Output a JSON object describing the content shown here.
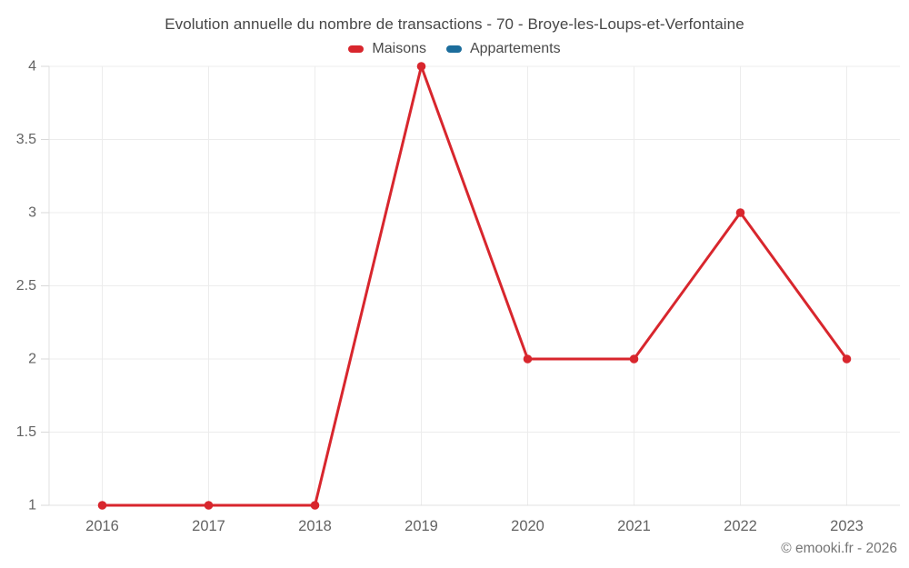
{
  "chart_data": {
    "type": "line",
    "title": "Evolution annuelle du nombre de transactions - 70 - Broye-les-Loups-et-Verfontaine",
    "xlabel": "",
    "ylabel": "",
    "categories": [
      "2016",
      "2017",
      "2018",
      "2019",
      "2020",
      "2021",
      "2022",
      "2023"
    ],
    "series": [
      {
        "name": "Maisons",
        "color": "#d8262d",
        "values": [
          1,
          1,
          1,
          4,
          2,
          2,
          3,
          2
        ]
      },
      {
        "name": "Appartements",
        "color": "#1c6d9c",
        "values": []
      }
    ],
    "ylim": [
      1,
      4
    ],
    "yticks": [
      1,
      1.5,
      2,
      2.5,
      3,
      3.5,
      4
    ],
    "grid": true,
    "legend_position": "top"
  },
  "colors": {
    "grid": "#ececec",
    "axis": "#e0e0e0",
    "tick": "#d9d9d9",
    "tick_text": "#636363",
    "title_text": "#464646",
    "legend_text": "#4a4a4a",
    "footer_text": "#757575"
  },
  "footer": {
    "text": "© emooki.fr - 2026"
  }
}
